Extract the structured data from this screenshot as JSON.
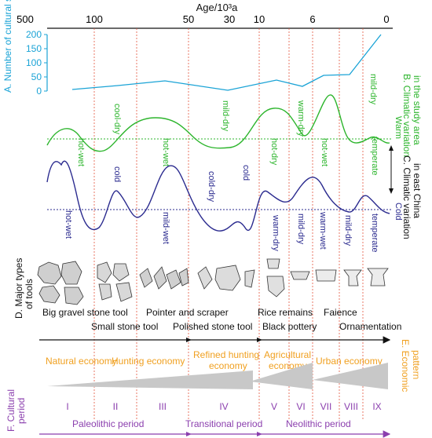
{
  "chart_data": {
    "type": "diagram",
    "title": "Age/10³a",
    "axis": {
      "label": "Age/10³a",
      "ticks": [
        "500",
        "100",
        "50",
        "30",
        "10",
        "6",
        "0"
      ]
    },
    "panel_a": {
      "label": "A. Number of cultural sites",
      "ticks": [
        "0",
        "50",
        "100",
        "150",
        "200"
      ],
      "ylim": [
        0,
        200
      ]
    },
    "panel_b": {
      "label_line1": "B. Climatic variation",
      "label_line2": "in the study area",
      "phases": [
        "hot-wet",
        "cool-dry",
        "hot-wet",
        "mild-dry",
        "hot-dry",
        "warm-dry",
        "hot-wet",
        "mild-dry",
        "temperate"
      ]
    },
    "panel_c": {
      "label_line1": "C. Climatic variation",
      "label_line2": "in east China",
      "warm": "Warm",
      "cold": "Cold",
      "phases": [
        "hot-wet",
        "cold",
        "mild-wet",
        "cold-dry",
        "cold",
        "warm-dry",
        "mild-dry",
        "warm-wet",
        "mild-dry",
        "temperate"
      ]
    },
    "panel_d": {
      "label_line1": "D. Major types",
      "label_line2": "of tools",
      "tools": [
        "Big gravel stone tool",
        "Small stone tool",
        "Pointer and scraper",
        "Polished stone tool",
        "Rice remains",
        "Black pottery",
        "Faience",
        "Ornamentation"
      ]
    },
    "panel_e": {
      "label_line1": "E. Economic",
      "label_line2": "pattern",
      "economies": [
        "Natural economy",
        "Hunting economy",
        "Refined hunting",
        "economy",
        "Agricultural",
        "economy",
        "Urban economy"
      ]
    },
    "panel_f": {
      "label_line1": "F. Cultural",
      "label_line2": "period",
      "stages": [
        "I",
        "II",
        "III",
        "IV",
        "V",
        "VI",
        "VII",
        "VIII",
        "IX"
      ],
      "periods": [
        "Paleolithic period",
        "Transitional period",
        "Neolithic period"
      ]
    }
  },
  "colors": {
    "site_line": "#1aa3d6",
    "study_area": "#2db52d",
    "east_china": "#2b2b8f",
    "economy": "#f0a020",
    "period": "#8b3fae",
    "divider": "#e3553d"
  }
}
